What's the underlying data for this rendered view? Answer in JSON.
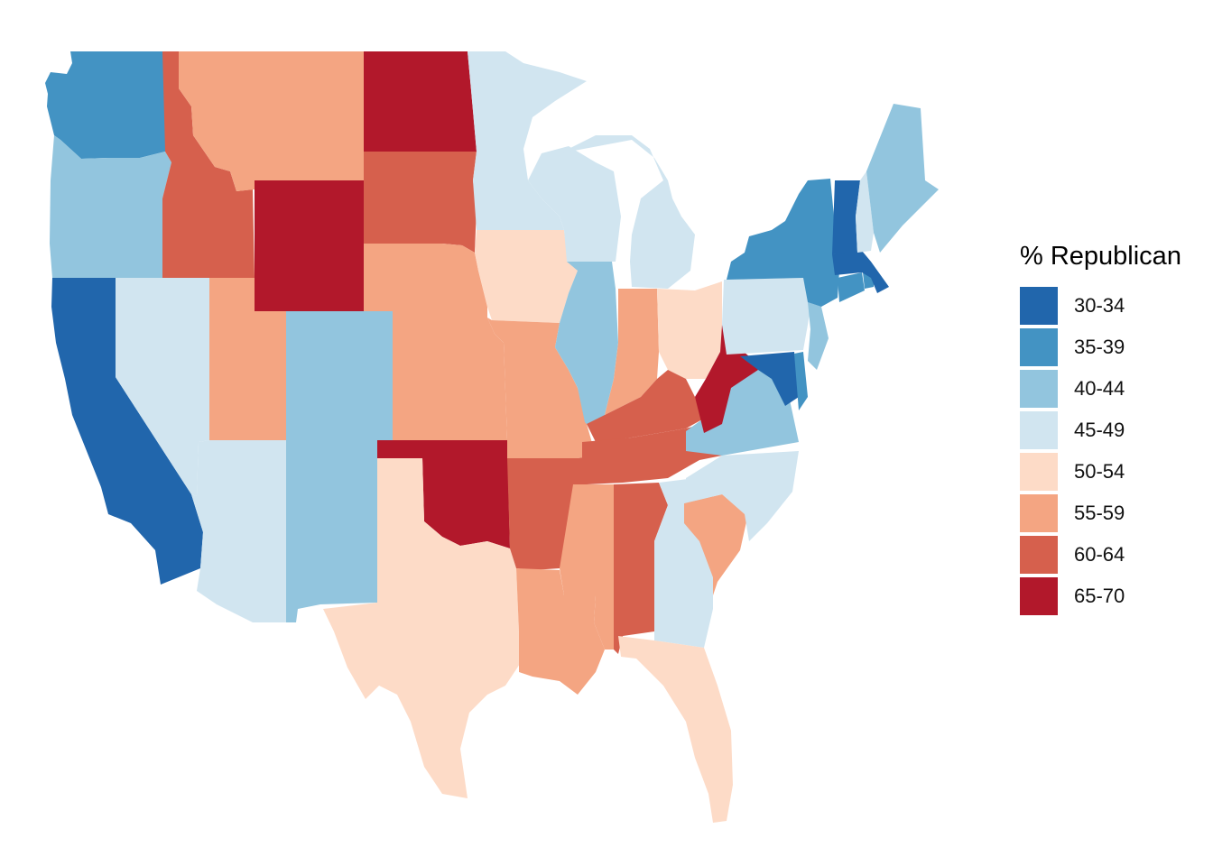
{
  "map": {
    "legend": {
      "title": "% Republican",
      "classes": [
        {
          "label": "30-34",
          "color": "#2166ac"
        },
        {
          "label": "35-39",
          "color": "#4393c3"
        },
        {
          "label": "40-44",
          "color": "#92c5de"
        },
        {
          "label": "45-49",
          "color": "#d1e5f0"
        },
        {
          "label": "50-54",
          "color": "#fddbc7"
        },
        {
          "label": "55-59",
          "color": "#f4a582"
        },
        {
          "label": "60-64",
          "color": "#d6604d"
        },
        {
          "label": "65-70",
          "color": "#b2182b"
        }
      ]
    },
    "states": [
      {
        "name": "washington",
        "class": "35-39"
      },
      {
        "name": "oregon",
        "class": "40-44"
      },
      {
        "name": "california",
        "class": "30-34"
      },
      {
        "name": "nevada",
        "class": "45-49"
      },
      {
        "name": "idaho",
        "class": "60-64"
      },
      {
        "name": "montana",
        "class": "55-59"
      },
      {
        "name": "wyoming",
        "class": "65-70"
      },
      {
        "name": "utah",
        "class": "55-59"
      },
      {
        "name": "arizona",
        "class": "45-49"
      },
      {
        "name": "colorado",
        "class": "40-44"
      },
      {
        "name": "new-mexico",
        "class": "40-44"
      },
      {
        "name": "north-dakota",
        "class": "65-70"
      },
      {
        "name": "south-dakota",
        "class": "60-64"
      },
      {
        "name": "nebraska",
        "class": "55-59"
      },
      {
        "name": "kansas",
        "class": "55-59"
      },
      {
        "name": "oklahoma",
        "class": "65-70"
      },
      {
        "name": "texas",
        "class": "50-54"
      },
      {
        "name": "minnesota",
        "class": "45-49"
      },
      {
        "name": "iowa",
        "class": "50-54"
      },
      {
        "name": "missouri",
        "class": "55-59"
      },
      {
        "name": "arkansas",
        "class": "60-64"
      },
      {
        "name": "louisiana",
        "class": "55-59"
      },
      {
        "name": "wisconsin",
        "class": "45-49"
      },
      {
        "name": "illinois",
        "class": "40-44"
      },
      {
        "name": "michigan",
        "class": "45-49"
      },
      {
        "name": "indiana",
        "class": "55-59"
      },
      {
        "name": "ohio",
        "class": "50-54"
      },
      {
        "name": "kentucky",
        "class": "60-64"
      },
      {
        "name": "tennessee",
        "class": "60-64"
      },
      {
        "name": "mississippi",
        "class": "55-59"
      },
      {
        "name": "alabama",
        "class": "60-64"
      },
      {
        "name": "georgia",
        "class": "45-49"
      },
      {
        "name": "florida",
        "class": "50-54"
      },
      {
        "name": "south-carolina",
        "class": "55-59"
      },
      {
        "name": "north-carolina",
        "class": "45-49"
      },
      {
        "name": "virginia",
        "class": "40-44"
      },
      {
        "name": "west-virginia",
        "class": "65-70"
      },
      {
        "name": "maryland",
        "class": "30-34"
      },
      {
        "name": "delaware",
        "class": "35-39"
      },
      {
        "name": "pennsylvania",
        "class": "45-49"
      },
      {
        "name": "new-jersey",
        "class": "40-44"
      },
      {
        "name": "new-york",
        "class": "35-39"
      },
      {
        "name": "connecticut",
        "class": "35-39"
      },
      {
        "name": "rhode-island",
        "class": "35-39"
      },
      {
        "name": "massachusetts",
        "class": "30-34"
      },
      {
        "name": "vermont",
        "class": "30-34"
      },
      {
        "name": "new-hampshire",
        "class": "45-49"
      },
      {
        "name": "maine",
        "class": "40-44"
      }
    ]
  }
}
